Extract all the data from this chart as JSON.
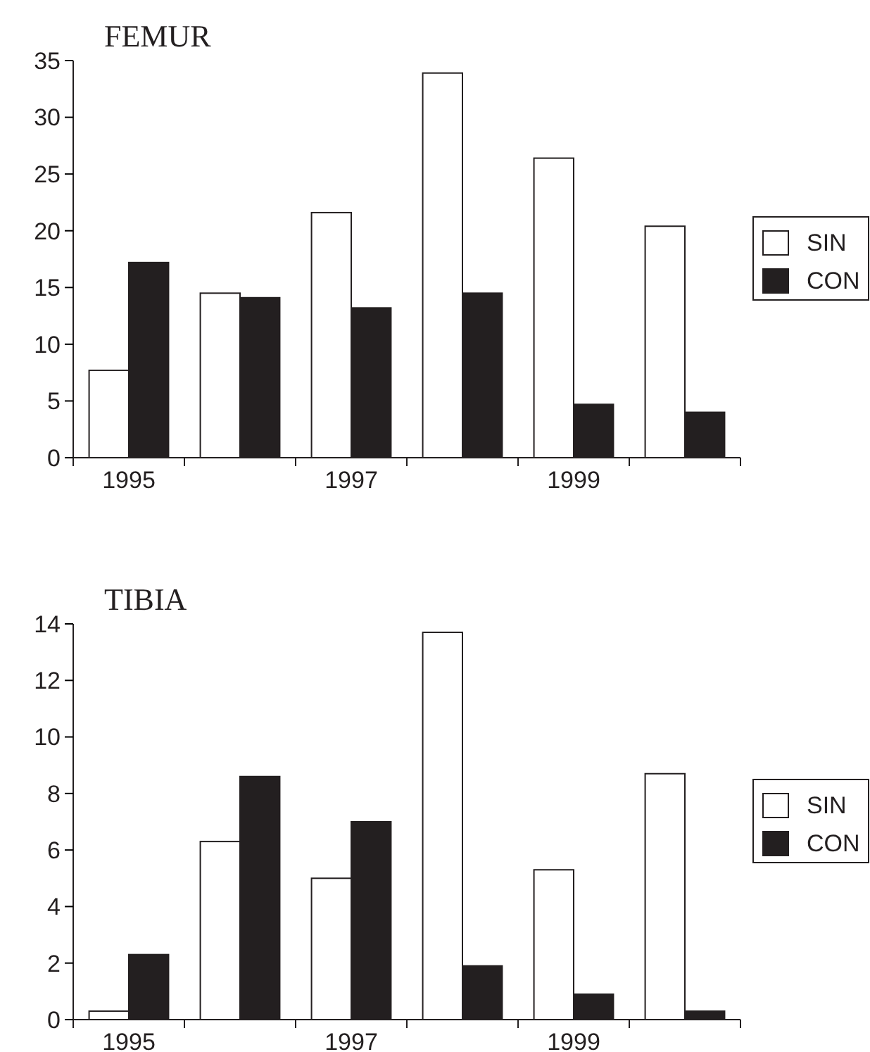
{
  "chart_data": [
    {
      "type": "bar",
      "title": "FEMUR",
      "categories": [
        "1995",
        null,
        "1997",
        null,
        "1999",
        null
      ],
      "series": [
        {
          "name": "SIN",
          "color": "#ffffff",
          "values": [
            7.7,
            14.5,
            21.6,
            33.9,
            26.4,
            20.4
          ]
        },
        {
          "name": "CON",
          "color": "#231f20",
          "values": [
            17.2,
            14.1,
            13.2,
            14.5,
            4.7,
            4.0
          ]
        }
      ],
      "ylim": [
        0,
        35
      ],
      "yticks": [
        0,
        5,
        10,
        15,
        20,
        25,
        30,
        35
      ],
      "legend": "right",
      "grid": false
    },
    {
      "type": "bar",
      "title": "TIBIA",
      "categories": [
        "1995",
        null,
        "1997",
        null,
        "1999",
        null
      ],
      "series": [
        {
          "name": "SIN",
          "color": "#ffffff",
          "values": [
            0.3,
            6.3,
            5.0,
            13.7,
            5.3,
            8.7
          ]
        },
        {
          "name": "CON",
          "color": "#231f20",
          "values": [
            2.3,
            8.6,
            7.0,
            1.9,
            0.9,
            0.3
          ]
        }
      ],
      "ylim": [
        0,
        14
      ],
      "yticks": [
        0,
        2,
        4,
        6,
        8,
        10,
        12,
        14
      ],
      "legend": "right",
      "grid": false
    }
  ]
}
